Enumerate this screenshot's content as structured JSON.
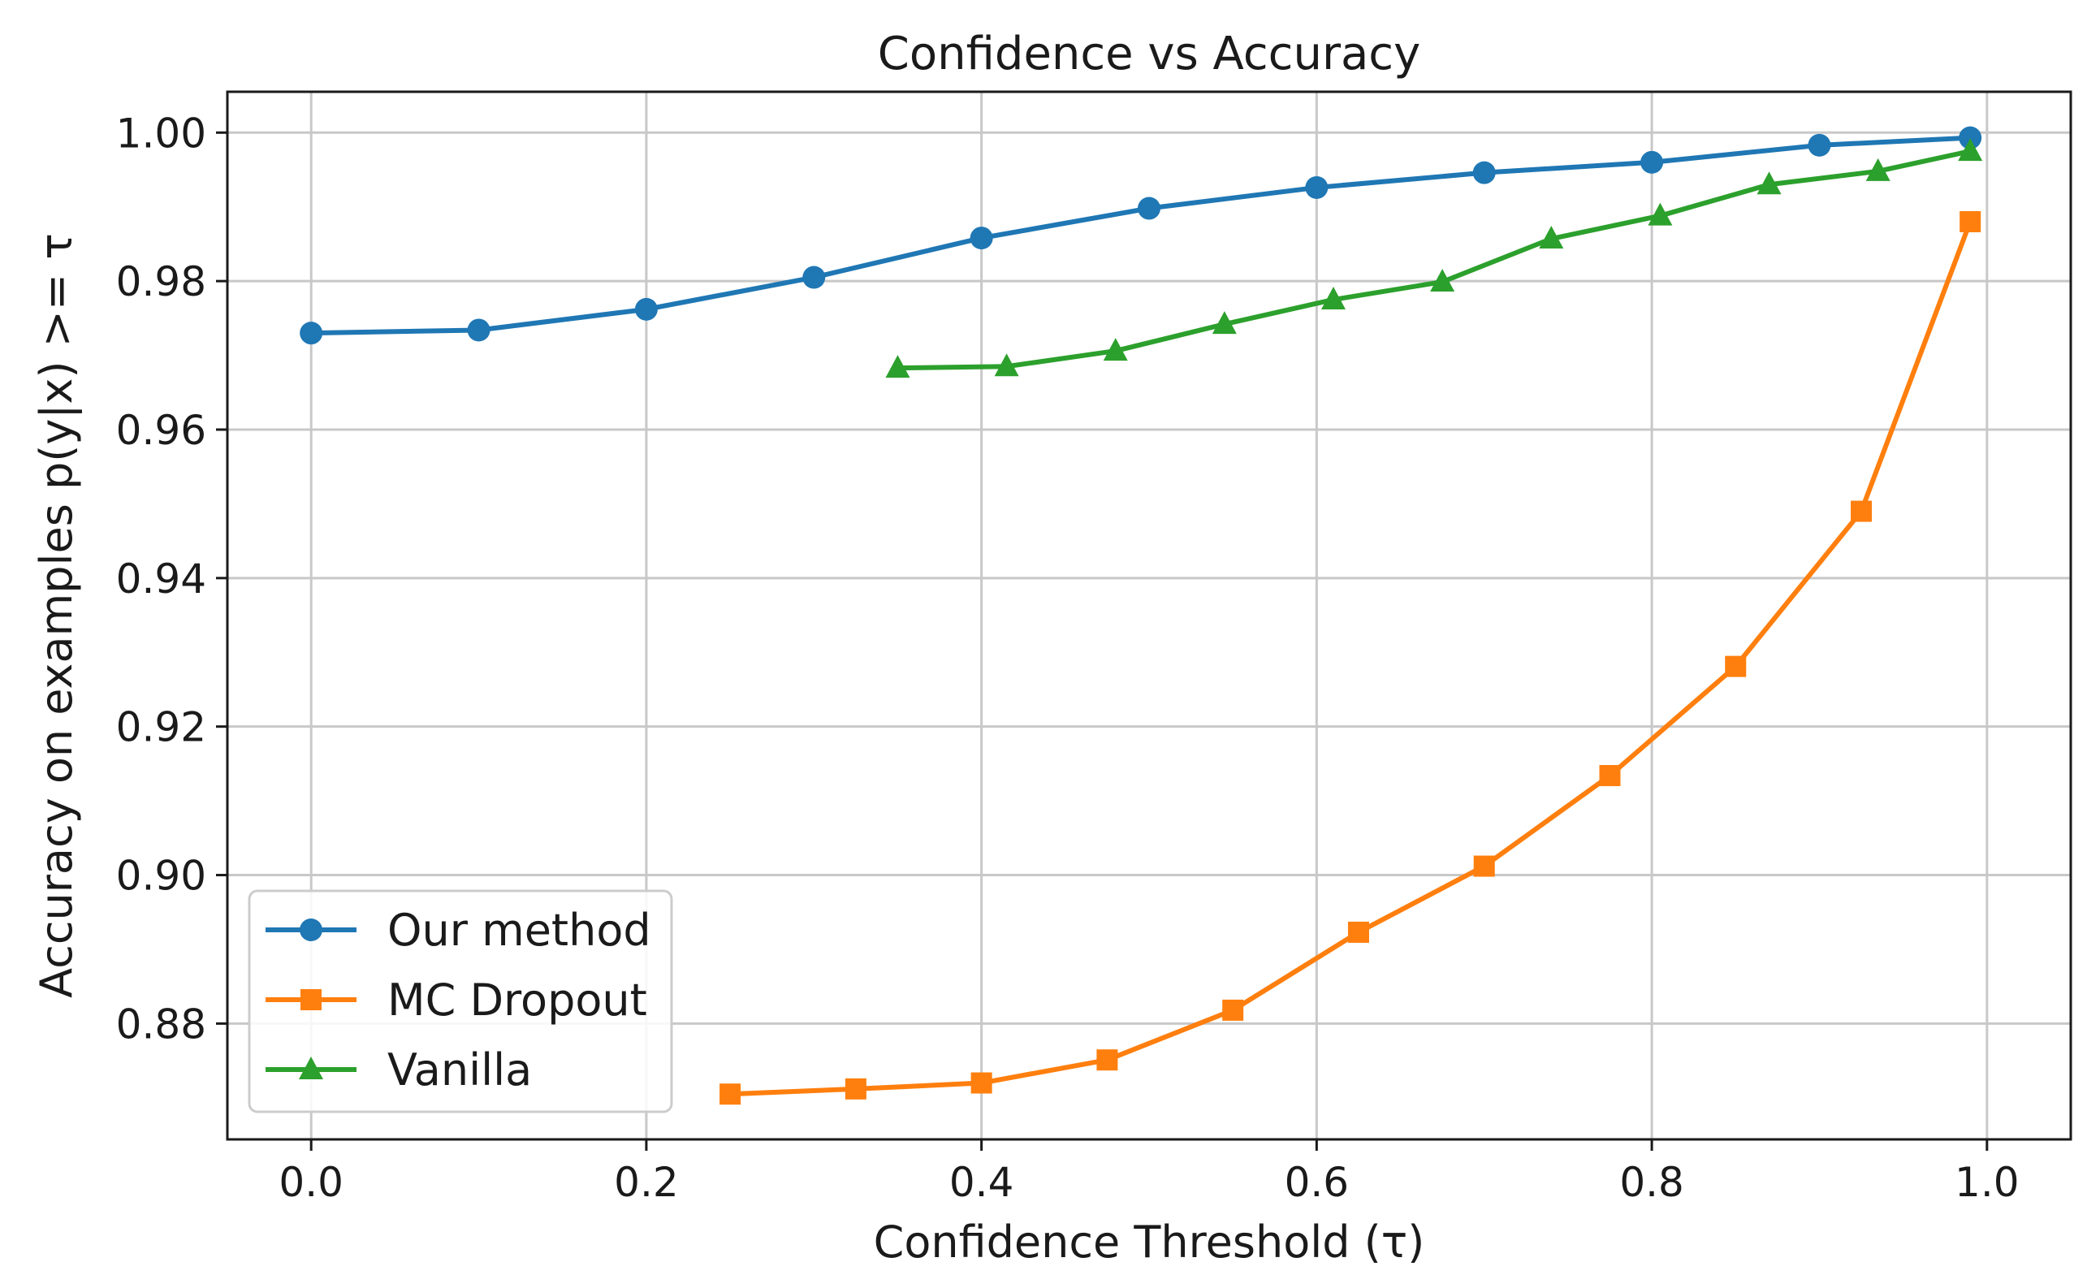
{
  "chart_data": {
    "type": "line",
    "title": "Confidence vs Accuracy",
    "xlabel": "Confidence Threshold (τ)",
    "ylabel": "Accuracy on examples p(y|x) >= τ",
    "xlim": [
      -0.05,
      1.05
    ],
    "ylim": [
      0.8644,
      1.0055
    ],
    "xticks": [
      0.0,
      0.2,
      0.4,
      0.6,
      0.8,
      1.0
    ],
    "xtick_labels": [
      "0.0",
      "0.2",
      "0.4",
      "0.6",
      "0.8",
      "1.0"
    ],
    "yticks": [
      0.88,
      0.9,
      0.92,
      0.94,
      0.96,
      0.98,
      1.0
    ],
    "ytick_labels": [
      "0.88",
      "0.90",
      "0.92",
      "0.94",
      "0.96",
      "0.98",
      "1.00"
    ],
    "grid": true,
    "legend_position": "lower-left",
    "series": [
      {
        "name": "Our method",
        "color": "#1f77b4",
        "marker": "circle",
        "x": [
          0.0,
          0.1,
          0.2,
          0.3,
          0.4,
          0.5,
          0.6,
          0.7,
          0.8,
          0.9,
          0.99
        ],
        "y": [
          0.973,
          0.9734,
          0.9762,
          0.9805,
          0.9858,
          0.9898,
          0.9926,
          0.9946,
          0.996,
          0.9983,
          0.9993
        ]
      },
      {
        "name": "MC Dropout",
        "color": "#ff7f0e",
        "marker": "square",
        "x": [
          0.25,
          0.325,
          0.4,
          0.475,
          0.55,
          0.625,
          0.7,
          0.775,
          0.85,
          0.925,
          0.99
        ],
        "y": [
          0.8705,
          0.8712,
          0.872,
          0.8751,
          0.8818,
          0.8923,
          0.9012,
          0.9134,
          0.9281,
          0.949,
          0.988
        ]
      },
      {
        "name": "Vanilla",
        "color": "#2ca02c",
        "marker": "triangle",
        "x": [
          0.35,
          0.415,
          0.48,
          0.545,
          0.61,
          0.675,
          0.74,
          0.805,
          0.87,
          0.935,
          0.99
        ],
        "y": [
          0.9683,
          0.9685,
          0.9706,
          0.9742,
          0.9775,
          0.9799,
          0.9857,
          0.9888,
          0.993,
          0.9948,
          0.9975
        ]
      }
    ]
  }
}
